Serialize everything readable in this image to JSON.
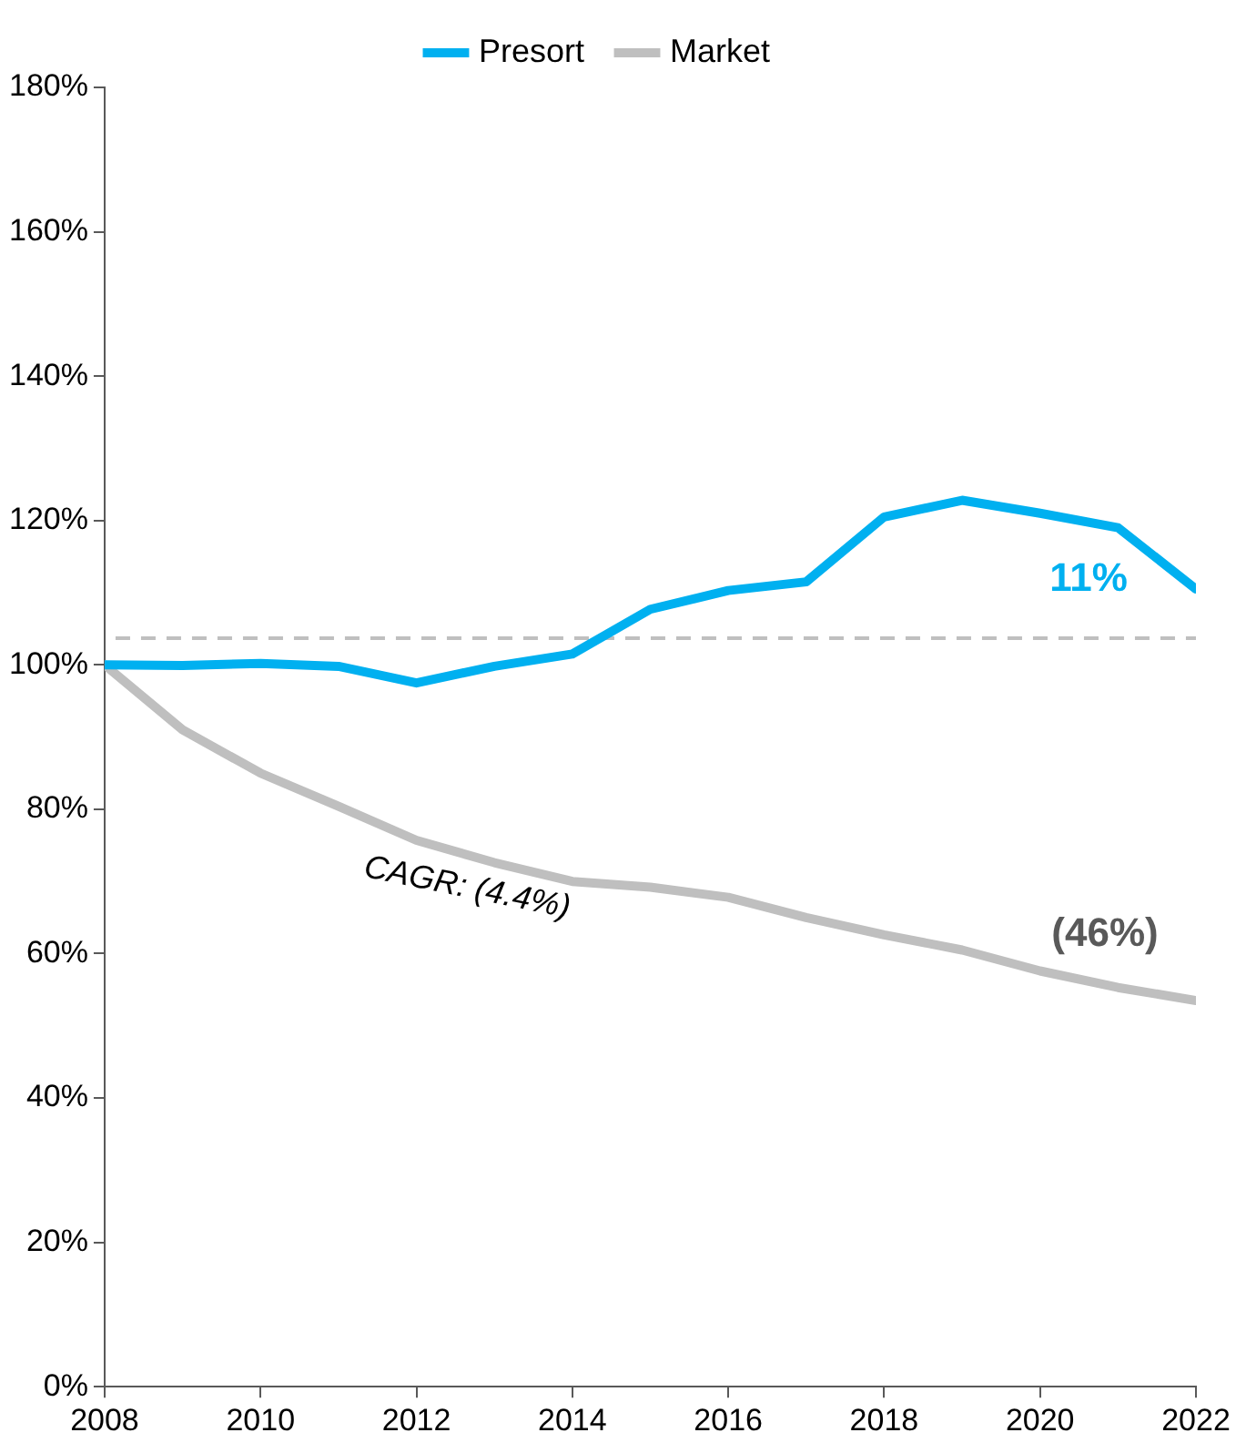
{
  "chart_data": {
    "type": "line",
    "x": [
      2008,
      2009,
      2010,
      2011,
      2012,
      2013,
      2014,
      2015,
      2016,
      2017,
      2018,
      2019,
      2020,
      2021,
      2022
    ],
    "series": [
      {
        "name": "Presort",
        "color": "#00b0f0",
        "values": [
          100,
          99.9,
          100.2,
          99.8,
          97.5,
          99.8,
          101.5,
          107.7,
          110.3,
          111.5,
          120.5,
          122.8,
          121,
          119,
          110.5
        ]
      },
      {
        "name": "Market",
        "color": "#bfbfbf",
        "values": [
          100,
          91,
          85,
          80.4,
          75.7,
          72.6,
          70,
          69.2,
          67.8,
          65,
          62.6,
          60.5,
          57.6,
          55.3,
          53.5
        ]
      }
    ],
    "xlim": [
      2008,
      2022
    ],
    "xticks": [
      2008,
      2010,
      2012,
      2014,
      2016,
      2018,
      2020,
      2022
    ],
    "ylim": [
      0,
      180
    ],
    "yticks": [
      {
        "value": 0,
        "label": "0%"
      },
      {
        "value": 20,
        "label": "20%"
      },
      {
        "value": 40,
        "label": "40%"
      },
      {
        "value": 60,
        "label": "60%"
      },
      {
        "value": 80,
        "label": "80%"
      },
      {
        "value": 100,
        "label": "100%"
      },
      {
        "value": 120,
        "label": "120%"
      },
      {
        "value": 140,
        "label": "140%"
      },
      {
        "value": 160,
        "label": "160%"
      },
      {
        "value": 180,
        "label": "180%"
      }
    ],
    "ref_lines": [
      {
        "axis": "y",
        "value": 103.7,
        "color": "#bfbfbf",
        "line_style": "dashed"
      }
    ],
    "annotations": [
      "11%",
      "(46%)",
      "CAGR: (4.4%)"
    ],
    "grid": false,
    "legend": "top",
    "marker": "none",
    "line_style": "solid"
  }
}
